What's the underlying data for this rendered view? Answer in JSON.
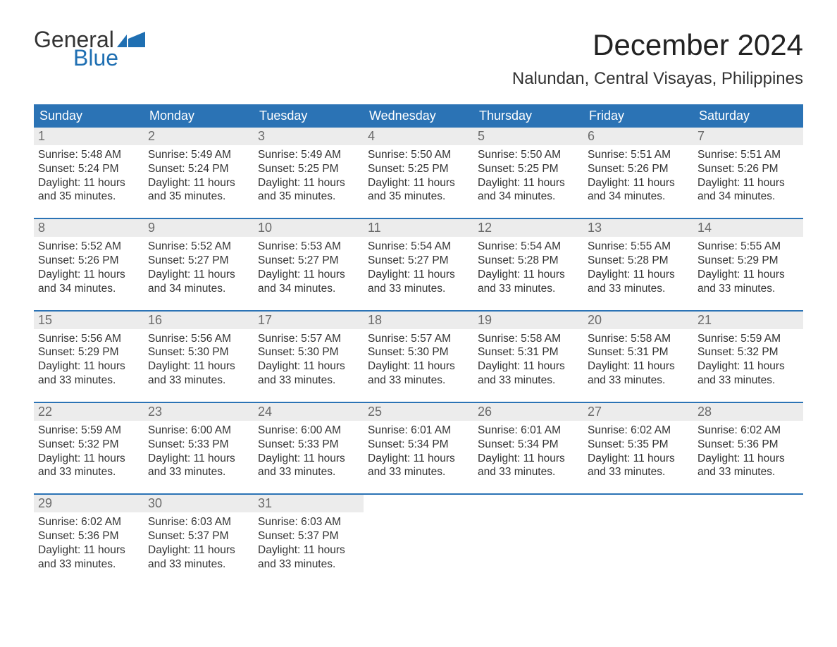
{
  "logo": {
    "general": "General",
    "blue": "Blue",
    "flag_color": "#1f6fb2"
  },
  "title": "December 2024",
  "location": "Nalundan, Central Visayas, Philippines",
  "colors": {
    "header_bg": "#2b73b5",
    "header_text": "#ffffff",
    "daynum_bg": "#ececec",
    "daynum_text": "#6a6a6a",
    "body_text": "#333333",
    "week_divider": "#2b73b5",
    "page_bg": "#ffffff"
  },
  "typography": {
    "title_fontsize": 42,
    "location_fontsize": 24,
    "dayhead_fontsize": 18,
    "daynum_fontsize": 18,
    "body_fontsize": 15.5,
    "font_family": "Arial"
  },
  "day_headers": [
    "Sunday",
    "Monday",
    "Tuesday",
    "Wednesday",
    "Thursday",
    "Friday",
    "Saturday"
  ],
  "weeks": [
    [
      {
        "n": "1",
        "sunrise": "Sunrise: 5:48 AM",
        "sunset": "Sunset: 5:24 PM",
        "daylight": "Daylight: 11 hours and 35 minutes."
      },
      {
        "n": "2",
        "sunrise": "Sunrise: 5:49 AM",
        "sunset": "Sunset: 5:24 PM",
        "daylight": "Daylight: 11 hours and 35 minutes."
      },
      {
        "n": "3",
        "sunrise": "Sunrise: 5:49 AM",
        "sunset": "Sunset: 5:25 PM",
        "daylight": "Daylight: 11 hours and 35 minutes."
      },
      {
        "n": "4",
        "sunrise": "Sunrise: 5:50 AM",
        "sunset": "Sunset: 5:25 PM",
        "daylight": "Daylight: 11 hours and 35 minutes."
      },
      {
        "n": "5",
        "sunrise": "Sunrise: 5:50 AM",
        "sunset": "Sunset: 5:25 PM",
        "daylight": "Daylight: 11 hours and 34 minutes."
      },
      {
        "n": "6",
        "sunrise": "Sunrise: 5:51 AM",
        "sunset": "Sunset: 5:26 PM",
        "daylight": "Daylight: 11 hours and 34 minutes."
      },
      {
        "n": "7",
        "sunrise": "Sunrise: 5:51 AM",
        "sunset": "Sunset: 5:26 PM",
        "daylight": "Daylight: 11 hours and 34 minutes."
      }
    ],
    [
      {
        "n": "8",
        "sunrise": "Sunrise: 5:52 AM",
        "sunset": "Sunset: 5:26 PM",
        "daylight": "Daylight: 11 hours and 34 minutes."
      },
      {
        "n": "9",
        "sunrise": "Sunrise: 5:52 AM",
        "sunset": "Sunset: 5:27 PM",
        "daylight": "Daylight: 11 hours and 34 minutes."
      },
      {
        "n": "10",
        "sunrise": "Sunrise: 5:53 AM",
        "sunset": "Sunset: 5:27 PM",
        "daylight": "Daylight: 11 hours and 34 minutes."
      },
      {
        "n": "11",
        "sunrise": "Sunrise: 5:54 AM",
        "sunset": "Sunset: 5:27 PM",
        "daylight": "Daylight: 11 hours and 33 minutes."
      },
      {
        "n": "12",
        "sunrise": "Sunrise: 5:54 AM",
        "sunset": "Sunset: 5:28 PM",
        "daylight": "Daylight: 11 hours and 33 minutes."
      },
      {
        "n": "13",
        "sunrise": "Sunrise: 5:55 AM",
        "sunset": "Sunset: 5:28 PM",
        "daylight": "Daylight: 11 hours and 33 minutes."
      },
      {
        "n": "14",
        "sunrise": "Sunrise: 5:55 AM",
        "sunset": "Sunset: 5:29 PM",
        "daylight": "Daylight: 11 hours and 33 minutes."
      }
    ],
    [
      {
        "n": "15",
        "sunrise": "Sunrise: 5:56 AM",
        "sunset": "Sunset: 5:29 PM",
        "daylight": "Daylight: 11 hours and 33 minutes."
      },
      {
        "n": "16",
        "sunrise": "Sunrise: 5:56 AM",
        "sunset": "Sunset: 5:30 PM",
        "daylight": "Daylight: 11 hours and 33 minutes."
      },
      {
        "n": "17",
        "sunrise": "Sunrise: 5:57 AM",
        "sunset": "Sunset: 5:30 PM",
        "daylight": "Daylight: 11 hours and 33 minutes."
      },
      {
        "n": "18",
        "sunrise": "Sunrise: 5:57 AM",
        "sunset": "Sunset: 5:30 PM",
        "daylight": "Daylight: 11 hours and 33 minutes."
      },
      {
        "n": "19",
        "sunrise": "Sunrise: 5:58 AM",
        "sunset": "Sunset: 5:31 PM",
        "daylight": "Daylight: 11 hours and 33 minutes."
      },
      {
        "n": "20",
        "sunrise": "Sunrise: 5:58 AM",
        "sunset": "Sunset: 5:31 PM",
        "daylight": "Daylight: 11 hours and 33 minutes."
      },
      {
        "n": "21",
        "sunrise": "Sunrise: 5:59 AM",
        "sunset": "Sunset: 5:32 PM",
        "daylight": "Daylight: 11 hours and 33 minutes."
      }
    ],
    [
      {
        "n": "22",
        "sunrise": "Sunrise: 5:59 AM",
        "sunset": "Sunset: 5:32 PM",
        "daylight": "Daylight: 11 hours and 33 minutes."
      },
      {
        "n": "23",
        "sunrise": "Sunrise: 6:00 AM",
        "sunset": "Sunset: 5:33 PM",
        "daylight": "Daylight: 11 hours and 33 minutes."
      },
      {
        "n": "24",
        "sunrise": "Sunrise: 6:00 AM",
        "sunset": "Sunset: 5:33 PM",
        "daylight": "Daylight: 11 hours and 33 minutes."
      },
      {
        "n": "25",
        "sunrise": "Sunrise: 6:01 AM",
        "sunset": "Sunset: 5:34 PM",
        "daylight": "Daylight: 11 hours and 33 minutes."
      },
      {
        "n": "26",
        "sunrise": "Sunrise: 6:01 AM",
        "sunset": "Sunset: 5:34 PM",
        "daylight": "Daylight: 11 hours and 33 minutes."
      },
      {
        "n": "27",
        "sunrise": "Sunrise: 6:02 AM",
        "sunset": "Sunset: 5:35 PM",
        "daylight": "Daylight: 11 hours and 33 minutes."
      },
      {
        "n": "28",
        "sunrise": "Sunrise: 6:02 AM",
        "sunset": "Sunset: 5:36 PM",
        "daylight": "Daylight: 11 hours and 33 minutes."
      }
    ],
    [
      {
        "n": "29",
        "sunrise": "Sunrise: 6:02 AM",
        "sunset": "Sunset: 5:36 PM",
        "daylight": "Daylight: 11 hours and 33 minutes."
      },
      {
        "n": "30",
        "sunrise": "Sunrise: 6:03 AM",
        "sunset": "Sunset: 5:37 PM",
        "daylight": "Daylight: 11 hours and 33 minutes."
      },
      {
        "n": "31",
        "sunrise": "Sunrise: 6:03 AM",
        "sunset": "Sunset: 5:37 PM",
        "daylight": "Daylight: 11 hours and 33 minutes."
      },
      null,
      null,
      null,
      null
    ]
  ]
}
